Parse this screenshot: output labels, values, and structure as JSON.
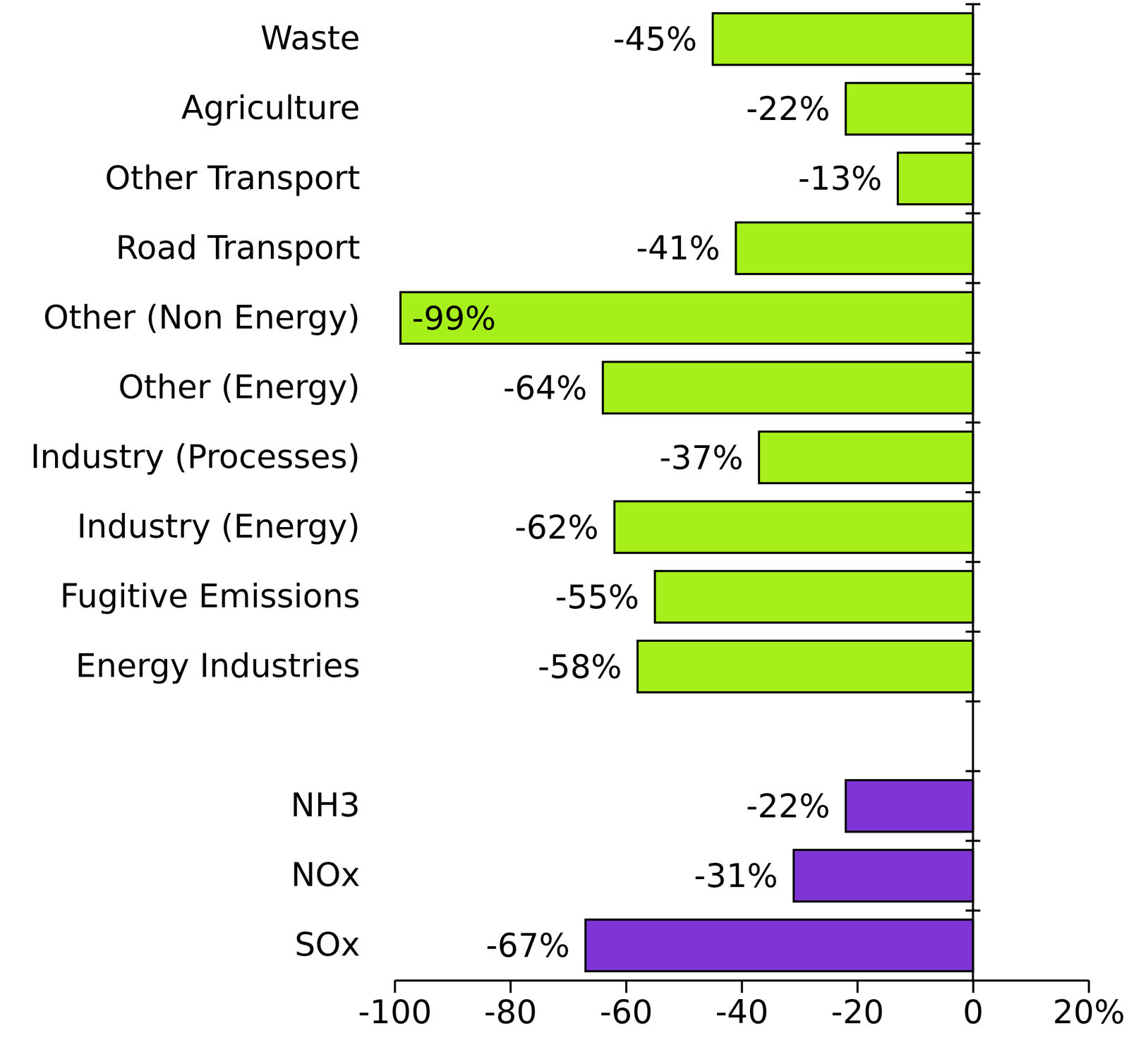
{
  "chart_data": {
    "type": "bar",
    "orientation": "horizontal",
    "categories": [
      "Waste",
      "Agriculture",
      "Other Transport",
      "Road Transport",
      "Other (Non Energy)",
      "Other (Energy)",
      "Industry (Processes)",
      "Industry (Energy)",
      "Fugitive Emissions",
      "Energy Industries",
      null,
      "NH3",
      "NOx",
      "SOx"
    ],
    "values": [
      -45,
      -22,
      -13,
      -41,
      -99,
      -64,
      -37,
      -62,
      -55,
      -58,
      null,
      -22,
      -31,
      -67
    ],
    "value_labels": [
      "-45%",
      "-22%",
      "-13%",
      "-41%",
      "-99%",
      "-64%",
      "-37%",
      "-62%",
      "-55%",
      "-58%",
      null,
      "-22%",
      "-31%",
      "-67%"
    ],
    "colors": [
      "#a6ef1a",
      "#a6ef1a",
      "#a6ef1a",
      "#a6ef1a",
      "#a6ef1a",
      "#a6ef1a",
      "#a6ef1a",
      "#a6ef1a",
      "#a6ef1a",
      "#a6ef1a",
      null,
      "#7f35d6",
      "#7f35d6",
      "#7f35d6"
    ],
    "xlim": [
      -100,
      20
    ],
    "xticks": [
      -100,
      -80,
      -60,
      -40,
      -20,
      0,
      {
        "value": 20,
        "label": "20%"
      }
    ],
    "data_labels": true,
    "grid": false
  }
}
